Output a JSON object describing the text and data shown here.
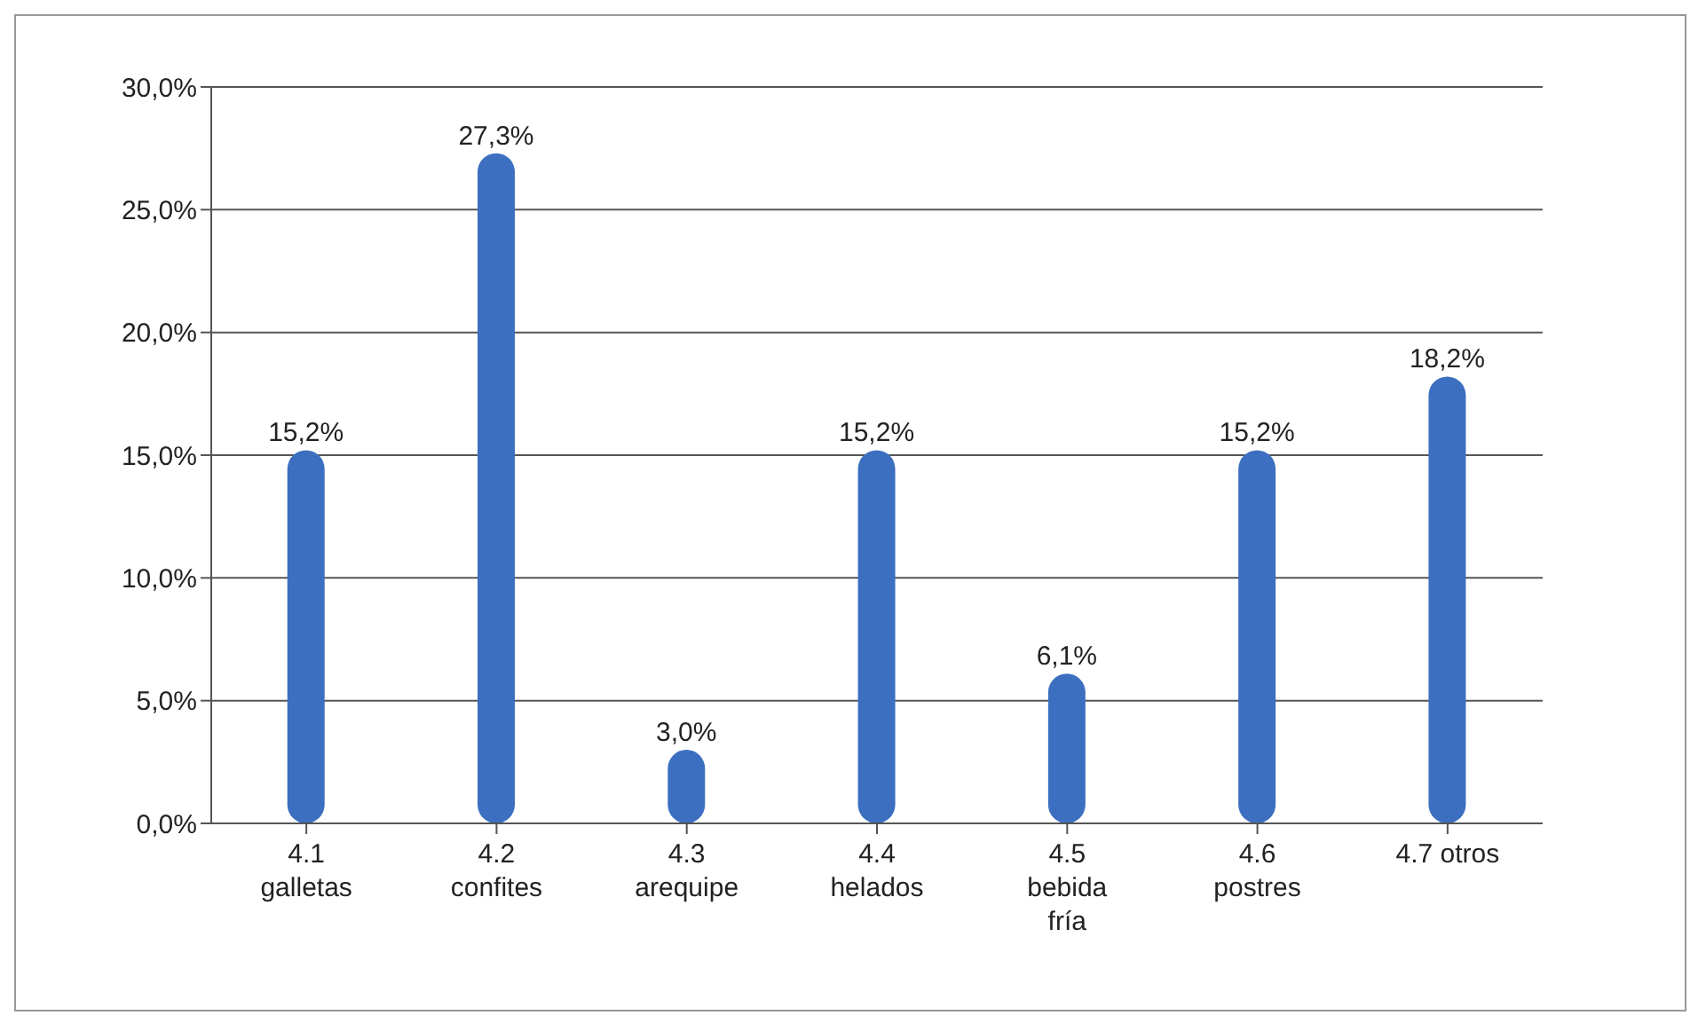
{
  "chart_data": {
    "type": "bar",
    "categories": [
      "4.1 galletas",
      "4.2 confites",
      "4.3 arequipe",
      "4.4 helados",
      "4.5 bebida fría",
      "4.6 postres",
      "4.7 otros"
    ],
    "values": [
      15.2,
      27.3,
      3.0,
      15.2,
      6.1,
      15.2,
      18.2
    ],
    "value_labels": [
      "15,2%",
      "27,3%",
      "3,0%",
      "15,2%",
      "6,1%",
      "15,2%",
      "18,2%"
    ],
    "color": "#3c6fc0",
    "ylim": [
      0,
      30
    ],
    "yticks": [
      {
        "value": 0,
        "label": "0,0%"
      },
      {
        "value": 5,
        "label": "5,0%"
      },
      {
        "value": 10,
        "label": "10,0%"
      },
      {
        "value": 15,
        "label": "15,0%"
      },
      {
        "value": 20,
        "label": "20,0%"
      },
      {
        "value": 25,
        "label": "25,0%"
      },
      {
        "value": 30,
        "label": "30,0%"
      }
    ],
    "grid": "y",
    "legend": false
  }
}
